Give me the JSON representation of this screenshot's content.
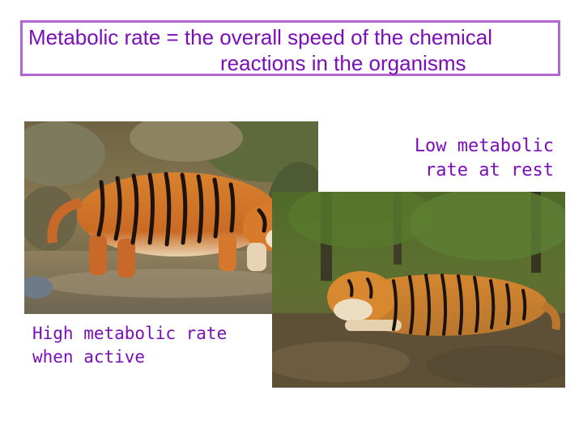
{
  "slide": {
    "title_line1": "Metabolic rate = the overall speed of the chemical",
    "title_line2": "reactions in the organisms",
    "accent_color": "#7a0fb8",
    "border_color": "#b266d6"
  },
  "captions": {
    "rest_line1": "Low metabolic",
    "rest_line2": "rate at rest",
    "active_line1": "High metabolic rate",
    "active_line2": "when active"
  },
  "images": {
    "active_photo": "tiger-walking-through-stream-photo",
    "rest_photo": "tiger-lying-on-forest-floor-photo"
  }
}
